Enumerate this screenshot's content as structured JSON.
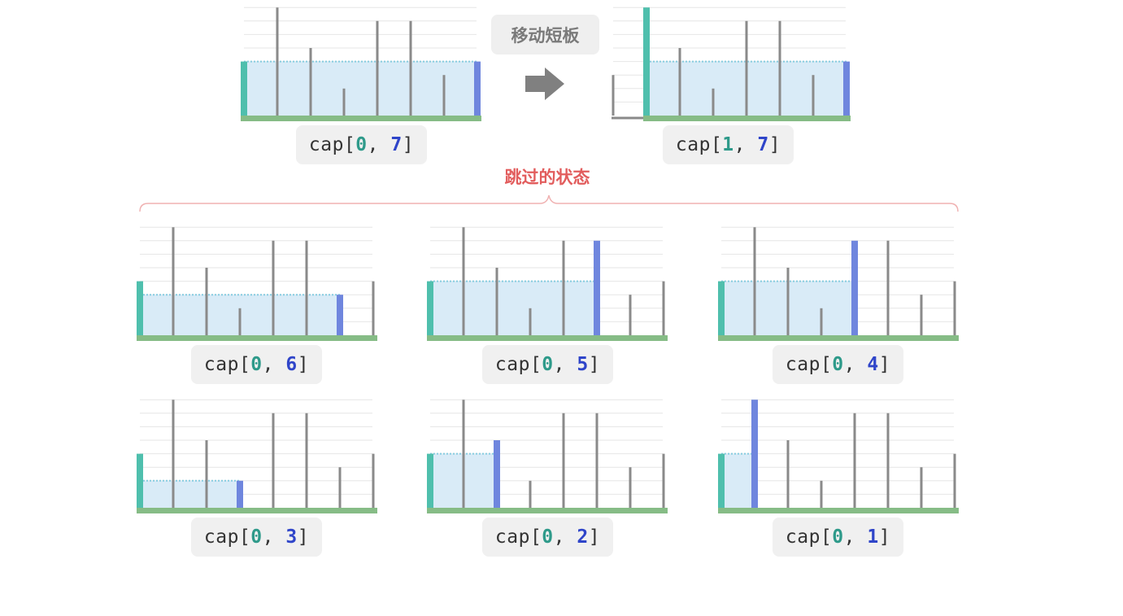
{
  "heights": [
    4,
    8,
    5,
    2,
    7,
    7,
    3,
    4
  ],
  "heights_after_move": [
    3,
    8,
    5,
    2,
    7,
    7,
    3,
    4
  ],
  "move_label": "移动短板",
  "skipped_label": "跳过的状态",
  "colors": {
    "left_bar": "#4fbfad",
    "right_bar": "#6f86de",
    "other_bar": "#8a8a8a",
    "water_fill": "#d9ebf7",
    "water_line": "#86cce0",
    "ground": "#86bc86",
    "grid": "#e6e6e6",
    "label_bg": "#f0f0f0",
    "left_index_text": "#2e9a8a",
    "right_index_text": "#2f45c9",
    "skipped_text": "#e25d5d",
    "arrow": "#808080"
  },
  "panels": [
    {
      "id": "top-before",
      "label_prefix": "cap[",
      "left_index": "0",
      "separator": ", ",
      "right_index": "7",
      "label_suffix": "]",
      "i": 0,
      "j": 7
    },
    {
      "id": "top-after",
      "label_prefix": "cap[",
      "left_index": "1",
      "separator": ", ",
      "right_index": "7",
      "label_suffix": "]",
      "i": 1,
      "j": 7
    },
    {
      "id": "skip-0-6",
      "label_prefix": "cap[",
      "left_index": "0",
      "separator": ", ",
      "right_index": "6",
      "label_suffix": "]",
      "i": 0,
      "j": 6
    },
    {
      "id": "skip-0-5",
      "label_prefix": "cap[",
      "left_index": "0",
      "separator": ", ",
      "right_index": "5",
      "label_suffix": "]",
      "i": 0,
      "j": 5
    },
    {
      "id": "skip-0-4",
      "label_prefix": "cap[",
      "left_index": "0",
      "separator": ", ",
      "right_index": "4",
      "label_suffix": "]",
      "i": 0,
      "j": 4
    },
    {
      "id": "skip-0-3",
      "label_prefix": "cap[",
      "left_index": "0",
      "separator": ", ",
      "right_index": "3",
      "label_suffix": "]",
      "i": 0,
      "j": 3
    },
    {
      "id": "skip-0-2",
      "label_prefix": "cap[",
      "left_index": "0",
      "separator": ", ",
      "right_index": "2",
      "label_suffix": "]",
      "i": 0,
      "j": 2
    },
    {
      "id": "skip-0-1",
      "label_prefix": "cap[",
      "left_index": "0",
      "separator": ", ",
      "right_index": "1",
      "label_suffix": "]",
      "i": 0,
      "j": 1
    }
  ]
}
